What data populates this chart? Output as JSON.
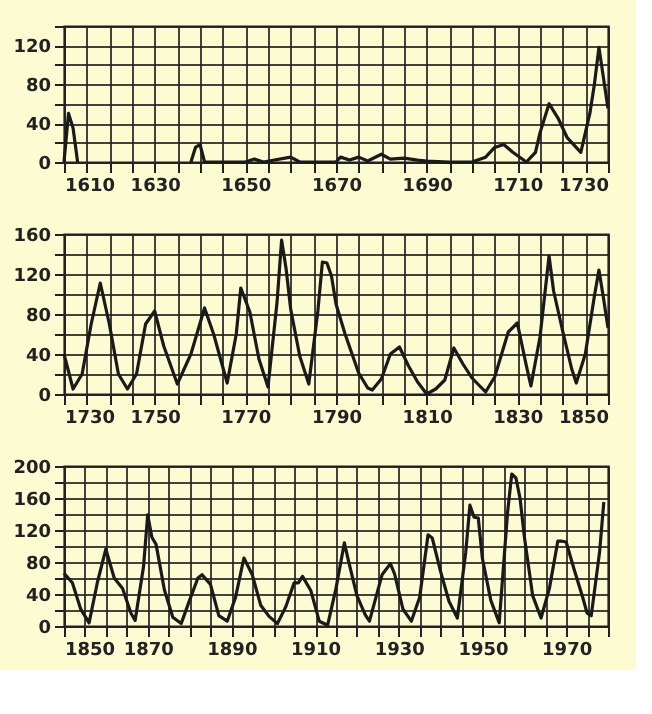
{
  "chart_data": [
    {
      "type": "line",
      "x": [
        1610,
        1611,
        1612,
        1613,
        1614,
        1638,
        1639,
        1640,
        1641,
        1650,
        1652,
        1654,
        1660,
        1662,
        1670,
        1671,
        1673,
        1675,
        1677,
        1680,
        1682,
        1685,
        1688,
        1690,
        1695,
        1700,
        1703,
        1705,
        1707,
        1709,
        1712,
        1714,
        1715,
        1717,
        1719,
        1721,
        1724,
        1726,
        1727,
        1728,
        1730
      ],
      "series": [
        {
          "color": "#1a1a1a",
          "values": [
            0,
            50,
            35,
            0,
            null,
            0,
            15,
            18,
            0,
            0,
            3,
            0,
            5,
            0,
            0,
            5,
            2,
            5,
            1,
            8,
            3,
            4,
            2,
            1,
            0,
            0,
            5,
            15,
            18,
            10,
            0,
            10,
            30,
            60,
            45,
            25,
            10,
            50,
            80,
            118,
            55
          ]
        }
      ],
      "xlim": [
        1610,
        1730
      ],
      "ylim": [
        0,
        140
      ],
      "xticks": [
        1610,
        {
          "value": 1615,
          "label": null
        },
        {
          "value": 1620,
          "label": null
        },
        {
          "value": 1625,
          "label": null
        },
        1630,
        {
          "value": 1635,
          "label": null
        },
        {
          "value": 1640,
          "label": null
        },
        {
          "value": 1645,
          "label": null
        },
        1650,
        {
          "value": 1655,
          "label": null
        },
        {
          "value": 1660,
          "label": null
        },
        {
          "value": 1665,
          "label": null
        },
        1670,
        {
          "value": 1675,
          "label": null
        },
        {
          "value": 1680,
          "label": null
        },
        {
          "value": 1685,
          "label": null
        },
        1690,
        {
          "value": 1695,
          "label": null
        },
        {
          "value": 1700,
          "label": null
        },
        {
          "value": 1705,
          "label": null
        },
        1710,
        {
          "value": 1715,
          "label": null
        },
        {
          "value": 1720,
          "label": null
        },
        {
          "value": 1725,
          "label": null
        },
        1730
      ],
      "yticks": [
        0,
        {
          "value": 20,
          "label": null
        },
        40,
        {
          "value": 60,
          "label": null
        },
        80,
        {
          "value": 100,
          "label": null
        },
        120,
        {
          "value": 140,
          "label": null
        }
      ],
      "grid": true,
      "marker": "none",
      "line_style": "solid"
    },
    {
      "type": "line",
      "x": [
        1730,
        1732,
        1734,
        1736,
        1738,
        1740,
        1742,
        1744,
        1746,
        1748,
        1750,
        1752,
        1755,
        1758,
        1761,
        1763,
        1766,
        1768,
        1769,
        1771,
        1773,
        1775,
        1777,
        1778,
        1779,
        1780,
        1782,
        1784,
        1786,
        1787,
        1788,
        1789,
        1790,
        1792,
        1795,
        1797,
        1798,
        1800,
        1802,
        1804,
        1806,
        1808,
        1810,
        1812,
        1814,
        1816,
        1818,
        1820,
        1823,
        1825,
        1828,
        1830,
        1832,
        1833,
        1835,
        1837,
        1838,
        1840,
        1842,
        1843,
        1845,
        1847,
        1848,
        1849,
        1850
      ],
      "series": [
        {
          "color": "#1a1a1a",
          "values": [
            40,
            5,
            20,
            70,
            111,
            70,
            20,
            5,
            20,
            70,
            83,
            48,
            10,
            40,
            86,
            60,
            11,
            60,
            106,
            82,
            35,
            7,
            92,
            154,
            125,
            85,
            38,
            10,
            83,
            132,
            131,
            118,
            90,
            60,
            21,
            6,
            4,
            15,
            40,
            47,
            28,
            12,
            0,
            5,
            14,
            46,
            30,
            16,
            2,
            17,
            62,
            71,
            28,
            8,
            57,
            138,
            103,
            63,
            25,
            11,
            40,
            98,
            124,
            96,
            66
          ]
        }
      ],
      "xlim": [
        1730,
        1850
      ],
      "ylim": [
        0,
        160
      ],
      "xticks": [
        1730,
        {
          "value": 1735,
          "label": null
        },
        {
          "value": 1740,
          "label": null
        },
        {
          "value": 1745,
          "label": null
        },
        1750,
        {
          "value": 1755,
          "label": null
        },
        {
          "value": 1760,
          "label": null
        },
        {
          "value": 1765,
          "label": null
        },
        1770,
        {
          "value": 1775,
          "label": null
        },
        {
          "value": 1780,
          "label": null
        },
        {
          "value": 1785,
          "label": null
        },
        1790,
        {
          "value": 1795,
          "label": null
        },
        {
          "value": 1800,
          "label": null
        },
        {
          "value": 1805,
          "label": null
        },
        1810,
        {
          "value": 1815,
          "label": null
        },
        {
          "value": 1820,
          "label": null
        },
        {
          "value": 1825,
          "label": null
        },
        1830,
        {
          "value": 1835,
          "label": null
        },
        {
          "value": 1840,
          "label": null
        },
        {
          "value": 1845,
          "label": null
        },
        1850
      ],
      "yticks": [
        0,
        {
          "value": 20,
          "label": null
        },
        40,
        {
          "value": 60,
          "label": null
        },
        80,
        {
          "value": 100,
          "label": null
        },
        120,
        {
          "value": 140,
          "label": null
        },
        160
      ],
      "grid": true,
      "marker": "none",
      "line_style": "solid"
    },
    {
      "type": "line",
      "x": [
        1850,
        1852,
        1854,
        1856,
        1858,
        1860,
        1862,
        1864,
        1866,
        1867,
        1869,
        1870,
        1871,
        1872,
        1874,
        1876,
        1878,
        1880,
        1882,
        1883,
        1885,
        1887,
        1889,
        1891,
        1893,
        1895,
        1897,
        1899,
        1901,
        1903,
        1905,
        1906,
        1907,
        1909,
        1911,
        1913,
        1915,
        1917,
        1918,
        1920,
        1922,
        1923,
        1926,
        1928,
        1929,
        1931,
        1933,
        1935,
        1937,
        1938,
        1940,
        1942,
        1944,
        1946,
        1947,
        1948,
        1949,
        1950,
        1952,
        1954,
        1956,
        1957,
        1958,
        1959,
        1960,
        1962,
        1964,
        1966,
        1968,
        1969,
        1970,
        1972,
        1974,
        1975,
        1976,
        1978,
        1979
      ],
      "series": [
        {
          "color": "#1a1a1a",
          "values": [
            66,
            54,
            21,
            4,
            55,
            96,
            60,
            47,
            16,
            7,
            74,
            139,
            111,
            102,
            45,
            11,
            3,
            32,
            60,
            64,
            52,
            13,
            6,
            36,
            85,
            64,
            26,
            12,
            3,
            24,
            54,
            54,
            62,
            44,
            6,
            1,
            47,
            104,
            81,
            38,
            14,
            6,
            64,
            78,
            65,
            21,
            6,
            36,
            114,
            110,
            68,
            31,
            10,
            92,
            151,
            136,
            135,
            84,
            32,
            4,
            142,
            190,
            185,
            159,
            112,
            38,
            10,
            47,
            106,
            106,
            105,
            69,
            35,
            16,
            13,
            93,
            155
          ]
        }
      ],
      "xlim": [
        1850,
        1980
      ],
      "ylim": [
        0,
        200
      ],
      "xticks": [
        1850,
        {
          "value": 1855,
          "label": null
        },
        {
          "value": 1860,
          "label": null
        },
        {
          "value": 1865,
          "label": null
        },
        1870,
        {
          "value": 1875,
          "label": null
        },
        {
          "value": 1880,
          "label": null
        },
        {
          "value": 1885,
          "label": null
        },
        1890,
        {
          "value": 1895,
          "label": null
        },
        {
          "value": 1900,
          "label": null
        },
        {
          "value": 1905,
          "label": null
        },
        1910,
        {
          "value": 1915,
          "label": null
        },
        {
          "value": 1920,
          "label": null
        },
        {
          "value": 1925,
          "label": null
        },
        1930,
        {
          "value": 1935,
          "label": null
        },
        {
          "value": 1940,
          "label": null
        },
        {
          "value": 1945,
          "label": null
        },
        1950,
        {
          "value": 1955,
          "label": null
        },
        {
          "value": 1960,
          "label": null
        },
        {
          "value": 1965,
          "label": null
        },
        1970,
        {
          "value": 1975,
          "label": null
        },
        {
          "value": 1980,
          "label": null
        }
      ],
      "yticks": [
        0,
        {
          "value": 20,
          "label": null
        },
        40,
        {
          "value": 60,
          "label": null
        },
        80,
        {
          "value": 100,
          "label": null
        },
        120,
        {
          "value": 140,
          "label": null
        },
        160,
        {
          "value": 180,
          "label": null
        },
        200
      ],
      "grid": true,
      "marker": "none",
      "line_style": "solid"
    }
  ]
}
